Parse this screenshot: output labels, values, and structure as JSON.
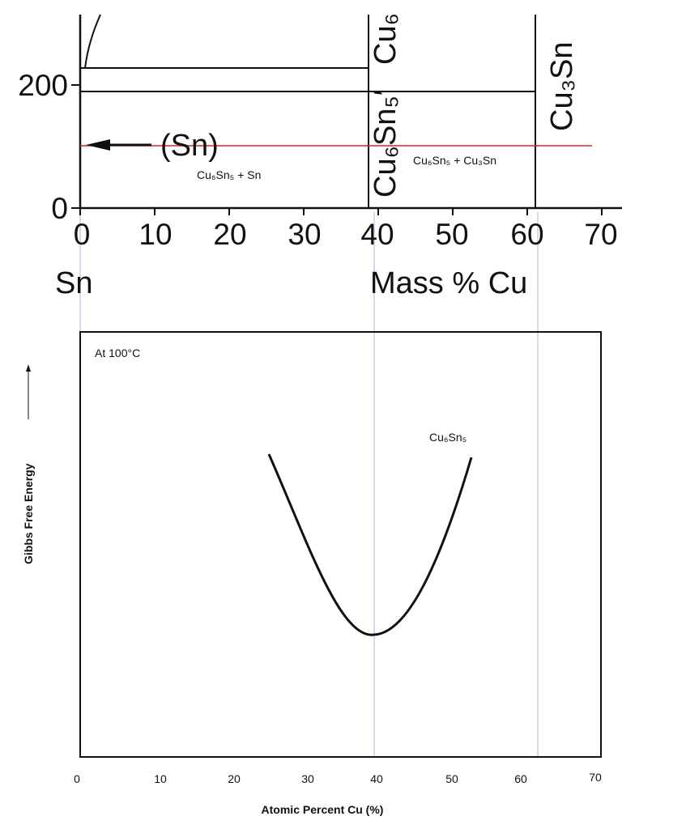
{
  "top": {
    "y_ticks": [
      "200",
      "0"
    ],
    "x_ticks": [
      "0",
      "10",
      "20",
      "30",
      "40",
      "50",
      "60",
      "70"
    ],
    "label_sn": "Sn",
    "label_mass": "Mass % Cu",
    "phase_sn": "(Sn)",
    "region_left": "Cu₆Sn₅ + Sn",
    "region_right": "Cu₆Sn₅ + Cu₃Sn",
    "phase_cu6sn5_top": "Cu₆",
    "phase_cu6sn5_prime": "Cu₆Sn₅′",
    "phase_cu3sn": "Cu₃Sn"
  },
  "bottom": {
    "temperature": "At 100°C",
    "curve_label": "Cu₆Sn₅",
    "y_axis_label": "Gibbs Free Energy",
    "x_axis_label": "Atomic Percent Cu (%)",
    "x_ticks": [
      "0",
      "10",
      "20",
      "30",
      "40",
      "50",
      "60",
      "70"
    ]
  },
  "colors": {
    "line": "#111111",
    "red_line": "#e02020",
    "guide": "#a8b8d8"
  }
}
